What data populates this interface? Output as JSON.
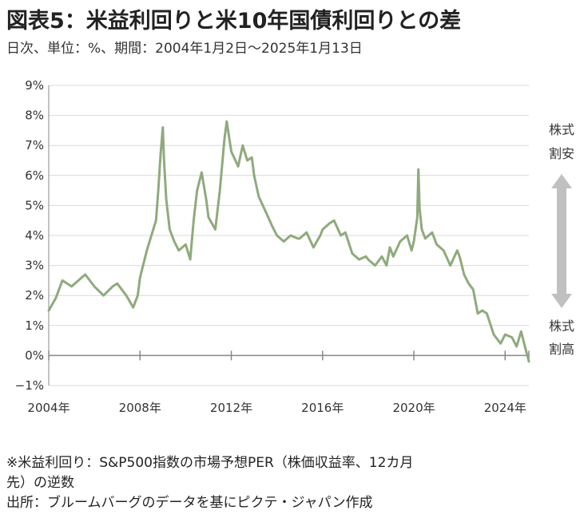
{
  "title": "図表5：米益利回りと米10年国債利回りとの差",
  "subtitle": "日次、単位：%、期間：2004年1月2日～2025年1月13日",
  "side_labels": {
    "top_line1": "株式",
    "top_line2": "割安",
    "bottom_line1": "株式",
    "bottom_line2": "割高"
  },
  "notes": {
    "line1": "※米益利回り：S&P500指数の市場予想PER（株価収益率、12カ月",
    "line2": "先）の逆数",
    "line3": "出所：ブルームバーグのデータを基にピクテ・ジャパン作成"
  },
  "colors": {
    "series": "#8faa7c",
    "grid": "#d9d9d9",
    "axis": "#888888",
    "arrow": "#c0c0c0"
  },
  "chart_data": {
    "type": "line",
    "title": "図表5：米益利回りと米10年国債利回りとの差",
    "xlabel": "",
    "ylabel": "",
    "xlim": [
      2004.0,
      2025.04
    ],
    "ylim": [
      -1,
      9
    ],
    "y_ticks": [
      -1,
      0,
      1,
      2,
      3,
      4,
      5,
      6,
      7,
      8,
      9
    ],
    "y_tick_labels": [
      "−1%",
      "0%",
      "1%",
      "2%",
      "3%",
      "4%",
      "5%",
      "6%",
      "7%",
      "8%",
      "9%"
    ],
    "x_ticks": [
      2004,
      2008,
      2012,
      2016,
      2020,
      2024
    ],
    "x_tick_labels": [
      "2004年",
      "2008年",
      "2012年",
      "2016年",
      "2020年",
      "2024年"
    ],
    "grid": true,
    "series": [
      {
        "x": [
          2004.0,
          2004.3,
          2004.6,
          2005.0,
          2005.3,
          2005.6,
          2006.0,
          2006.4,
          2006.8,
          2007.0,
          2007.4,
          2007.7,
          2007.9,
          2008.0,
          2008.3,
          2008.5,
          2008.7,
          2008.8,
          2008.9,
          2009.0,
          2009.05,
          2009.15,
          2009.3,
          2009.5,
          2009.7,
          2010.0,
          2010.2,
          2010.35,
          2010.5,
          2010.7,
          2010.9,
          2011.0,
          2011.3,
          2011.5,
          2011.7,
          2011.8,
          2012.0,
          2012.3,
          2012.5,
          2012.7,
          2012.9,
          2013.0,
          2013.2,
          2013.5,
          2013.8,
          2014.0,
          2014.3,
          2014.6,
          2014.9,
          2015.0,
          2015.3,
          2015.6,
          2015.9,
          2016.0,
          2016.3,
          2016.5,
          2016.8,
          2017.0,
          2017.3,
          2017.6,
          2017.9,
          2018.0,
          2018.3,
          2018.6,
          2018.8,
          2018.95,
          2019.1,
          2019.4,
          2019.7,
          2019.9,
          2020.0,
          2020.15,
          2020.2,
          2020.25,
          2020.35,
          2020.5,
          2020.8,
          2021.0,
          2021.3,
          2021.6,
          2021.9,
          2022.0,
          2022.2,
          2022.4,
          2022.6,
          2022.8,
          2023.0,
          2023.2,
          2023.5,
          2023.8,
          2024.0,
          2024.3,
          2024.5,
          2024.7,
          2024.9,
          2025.04
        ],
        "y": [
          1.5,
          1.9,
          2.5,
          2.3,
          2.5,
          2.7,
          2.3,
          2.0,
          2.3,
          2.4,
          2.0,
          1.6,
          2.0,
          2.6,
          3.5,
          4.0,
          4.5,
          5.5,
          6.7,
          7.6,
          6.5,
          5.2,
          4.2,
          3.8,
          3.5,
          3.7,
          3.2,
          4.5,
          5.5,
          6.1,
          5.2,
          4.6,
          4.2,
          5.5,
          7.2,
          7.8,
          6.8,
          6.3,
          7.0,
          6.5,
          6.6,
          6.0,
          5.3,
          4.8,
          4.3,
          4.0,
          3.8,
          4.0,
          3.9,
          3.9,
          4.1,
          3.6,
          4.0,
          4.2,
          4.4,
          4.5,
          4.0,
          4.1,
          3.4,
          3.2,
          3.3,
          3.2,
          3.0,
          3.3,
          3.0,
          3.6,
          3.3,
          3.8,
          4.0,
          3.5,
          3.8,
          4.6,
          6.2,
          4.9,
          4.2,
          3.9,
          4.1,
          3.7,
          3.5,
          3.0,
          3.5,
          3.3,
          2.7,
          2.4,
          2.2,
          1.4,
          1.5,
          1.4,
          0.7,
          0.4,
          0.7,
          0.6,
          0.3,
          0.8,
          0.2,
          -0.2
        ]
      }
    ]
  }
}
